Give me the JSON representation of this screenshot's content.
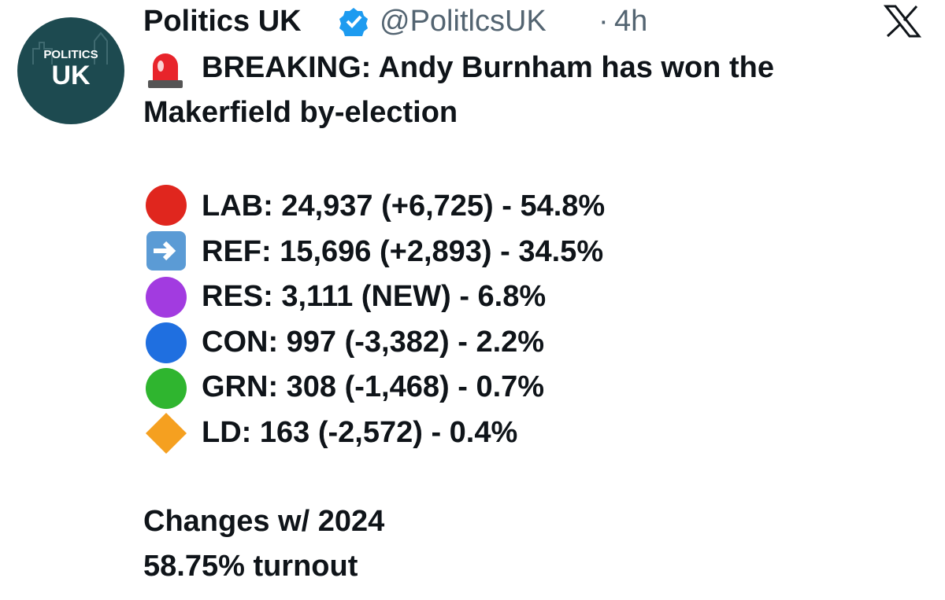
{
  "header": {
    "name": "Politics UK",
    "handle": "@PolitlcsUK",
    "separator": "·",
    "time": "4h"
  },
  "avatar": {
    "line1": "POLITICS",
    "line2": "UK"
  },
  "headline": {
    "lines": [
      "BREAKING: Andy Burnham has won the",
      "Makerfield by-election"
    ]
  },
  "results": [
    "LAB: 24,937 (+6,725) - 54.8%",
    "REF: 15,696 (+2,893) - 34.5%",
    "RES: 3,111 (NEW) - 6.8%",
    "CON: 997 (-3,382) - 2.2%",
    "GRN: 308 (-1,468) - 0.7%",
    "LD: 163 (-2,572) - 0.4%"
  ],
  "footer": [
    "Changes w/ 2024",
    "58.75% turnout"
  ]
}
